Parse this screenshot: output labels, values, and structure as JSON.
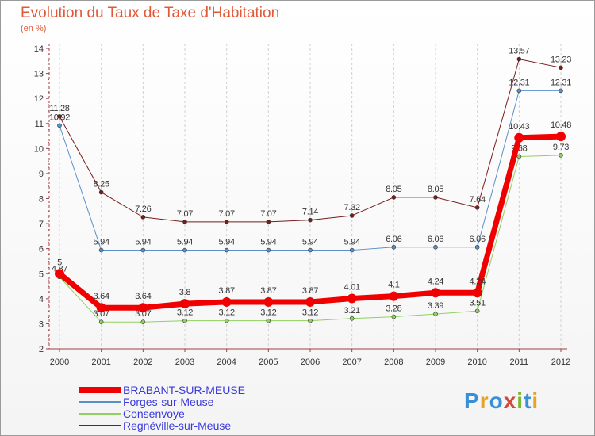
{
  "title": "Evolution du Taux de Taxe d'Habitation",
  "unit_label": "(en %)",
  "logo": {
    "text": "Proxiti",
    "letter_colors": [
      "#3a8fd6",
      "#e8a12a",
      "#3a8fd6",
      "#d24a3a",
      "#7ab535",
      "#3a8fd6",
      "#e8a12a"
    ]
  },
  "chart_data": {
    "type": "line",
    "title": "Evolution du Taux de Taxe d'Habitation",
    "ylabel": "(en %)",
    "xlabel": "",
    "ylim": [
      2,
      14
    ],
    "yticks": [
      2,
      3,
      4,
      5,
      6,
      7,
      8,
      9,
      10,
      11,
      12,
      13,
      14
    ],
    "x": [
      "2000",
      "2001",
      "2002",
      "2003",
      "2004",
      "2005",
      "2006",
      "2007",
      "2008",
      "2009",
      "2010",
      "2011",
      "2012"
    ],
    "grid": "vertical dashed",
    "legend_position": "bottom-left",
    "series": [
      {
        "name": "Regnéville-sur-Meuse",
        "color": "#7a1c1c",
        "width": 1,
        "marker": 2.5,
        "values": [
          11.28,
          8.25,
          7.26,
          7.07,
          7.07,
          7.07,
          7.14,
          7.32,
          8.05,
          8.05,
          7.64,
          13.57,
          13.23
        ],
        "labels": [
          "11.28",
          "8.25",
          "7.26",
          "7.07",
          "7.07",
          "7.07",
          "7.14",
          "7.32",
          "8.05",
          "8.05",
          "7.64",
          "13.57",
          "13.23"
        ]
      },
      {
        "name": "Forges-sur-Meuse",
        "color": "#5b8fc9",
        "width": 1,
        "marker": 2.5,
        "values": [
          10.92,
          5.94,
          5.94,
          5.94,
          5.94,
          5.94,
          5.94,
          5.94,
          6.06,
          6.06,
          6.06,
          12.31,
          12.31
        ],
        "labels": [
          "10.92",
          "5.94",
          "5.94",
          "5.94",
          "5.94",
          "5.94",
          "5.94",
          "5.94",
          "6.06",
          "6.06",
          "6.06",
          "12.31",
          "12.31"
        ]
      },
      {
        "name": "Consenvoye",
        "color": "#90d060",
        "width": 1,
        "marker": 2.5,
        "values": [
          4.87,
          3.07,
          3.07,
          3.12,
          3.12,
          3.12,
          3.12,
          3.21,
          3.28,
          3.39,
          3.51,
          9.68,
          9.73
        ],
        "labels": [
          "4.87",
          "3.07",
          "3.07",
          "3.12",
          "3.12",
          "3.12",
          "3.12",
          "3.21",
          "3.28",
          "3.39",
          "3.51",
          "9.68",
          "9.73"
        ]
      },
      {
        "name": "BRABANT-SUR-MEUSE",
        "color": "#f00000",
        "width": 7,
        "marker": 6,
        "values": [
          5,
          3.64,
          3.64,
          3.8,
          3.87,
          3.87,
          3.87,
          4.01,
          4.1,
          4.24,
          4.24,
          10.43,
          10.48
        ],
        "labels": [
          "5",
          "3.64",
          "3.64",
          "3.8",
          "3.87",
          "3.87",
          "3.87",
          "4.01",
          "4.1",
          "4.24",
          "4.24",
          "10.43",
          "10.48"
        ]
      }
    ],
    "legend": [
      {
        "name": "BRABANT-SUR-MEUSE",
        "color": "#f00000",
        "thick": true
      },
      {
        "name": "Forges-sur-Meuse",
        "color": "#5b8fc9",
        "thick": false
      },
      {
        "name": "Consenvoye",
        "color": "#90d060",
        "thick": false
      },
      {
        "name": "Regnéville-sur-Meuse",
        "color": "#7a1c1c",
        "thick": false
      }
    ]
  }
}
